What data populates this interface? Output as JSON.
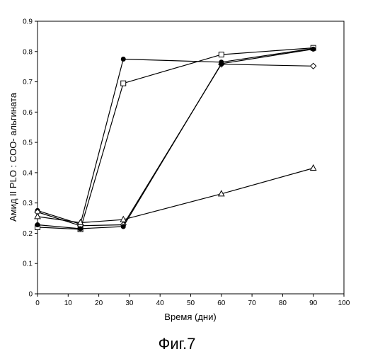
{
  "chart_data": {
    "type": "line",
    "xlabel": "Время (дни)",
    "ylabel": "Амид II PLO : COO- альгината",
    "caption": "Фиг.7",
    "xlim": [
      0,
      100
    ],
    "ylim": [
      0,
      0.9
    ],
    "xticks": [
      0,
      10,
      20,
      30,
      40,
      50,
      60,
      70,
      80,
      90,
      100
    ],
    "yticks": [
      0,
      0.1,
      0.2,
      0.3,
      0.4,
      0.5,
      0.6,
      0.7,
      0.8,
      0.9
    ],
    "grid": false,
    "series": [
      {
        "marker": "circle-filled",
        "x": [
          0,
          14,
          28,
          60,
          90
        ],
        "y": [
          0.275,
          0.23,
          0.775,
          0.765,
          0.81
        ]
      },
      {
        "marker": "square-open",
        "x": [
          0,
          14,
          28,
          60,
          90
        ],
        "y": [
          0.22,
          0.213,
          0.695,
          0.79,
          0.812
        ]
      },
      {
        "marker": "diamond-open",
        "x": [
          0,
          14,
          28,
          60,
          90
        ],
        "y": [
          0.27,
          0.225,
          0.228,
          0.758,
          0.752
        ]
      },
      {
        "marker": "circle-filled",
        "x": [
          0,
          14,
          28,
          60,
          90
        ],
        "y": [
          0.228,
          0.215,
          0.222,
          0.76,
          0.808
        ]
      },
      {
        "marker": "triangle-open",
        "x": [
          0,
          14,
          28,
          60,
          90
        ],
        "y": [
          0.255,
          0.235,
          0.245,
          0.33,
          0.415
        ]
      }
    ]
  }
}
